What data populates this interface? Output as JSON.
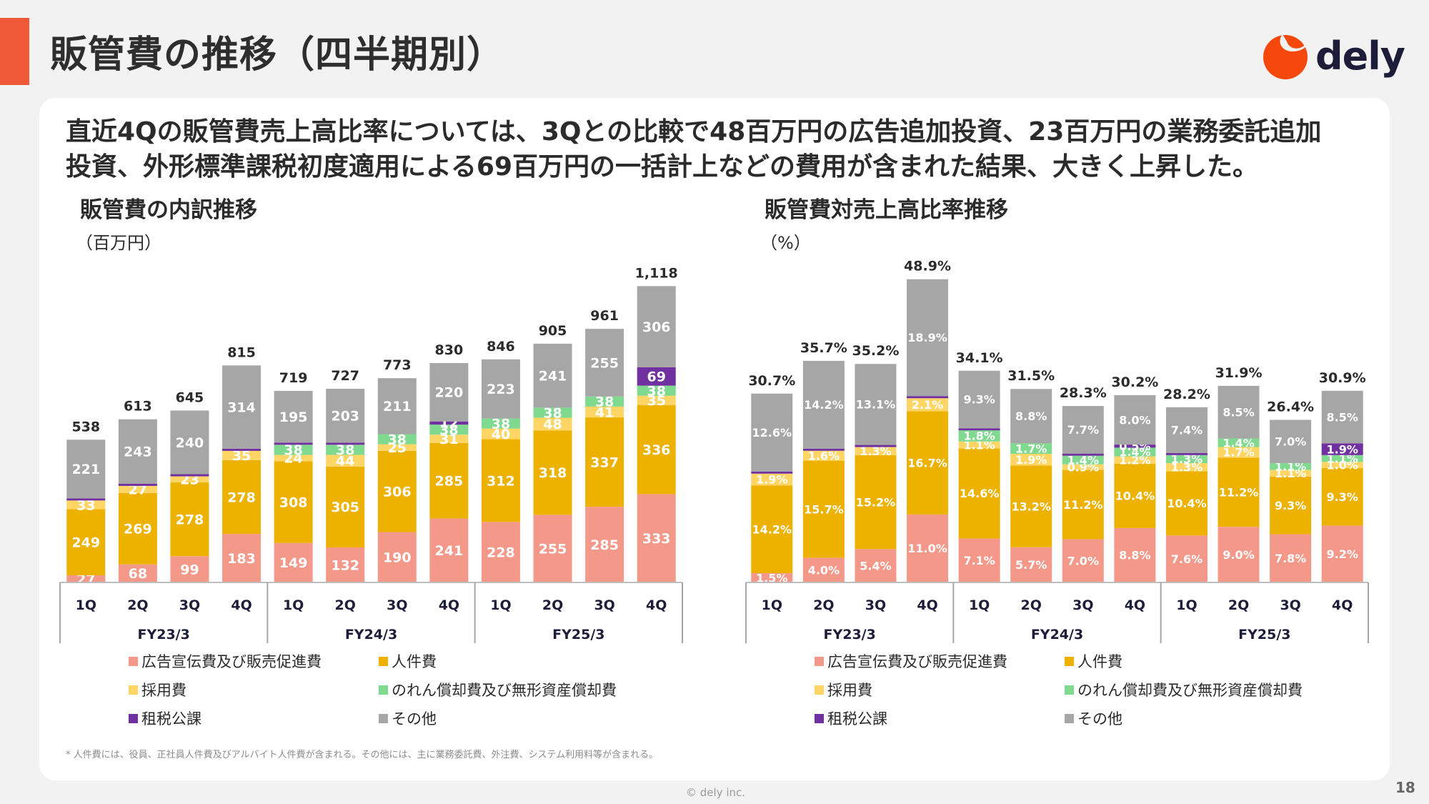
{
  "header": {
    "title": "販管費の推移（四半期別）",
    "logo_text": "dely",
    "accent_color": "#F05A38"
  },
  "headline": {
    "line1": "直近4Qの販管費売上高比率については、3Qとの比較で48百万円の広告追加投資、23百万円の業務委託追加",
    "line2": "投資、外形標準課税初度適用による69百万円の一括計上などの費用が含まれた結果、大きく上昇した。"
  },
  "series_colors": {
    "advertising": "#F4998A",
    "personnel": "#EDB100",
    "recruiting": "#FFD666",
    "amortization": "#7FD98F",
    "taxes": "#7030A0",
    "other": "#A6A6A6"
  },
  "chart_data": [
    {
      "type": "bar",
      "stacked": true,
      "title": "販管費の内訳推移",
      "unit": "（百万円）",
      "categories": [
        "1Q",
        "2Q",
        "3Q",
        "4Q",
        "1Q",
        "2Q",
        "3Q",
        "4Q",
        "1Q",
        "2Q",
        "3Q",
        "4Q"
      ],
      "groups": [
        {
          "label": "FY23/3",
          "span": 4
        },
        {
          "label": "FY24/3",
          "span": 4
        },
        {
          "label": "FY25/3",
          "span": 4
        }
      ],
      "totals": [
        "538",
        "613",
        "645",
        "815",
        "719",
        "727",
        "773",
        "830",
        "846",
        "905",
        "961",
        "1,118"
      ],
      "total_values": [
        538,
        613,
        645,
        815,
        719,
        727,
        773,
        830,
        846,
        905,
        961,
        1118
      ],
      "series": [
        {
          "key": "advertising",
          "name": "広告宣伝費及び販売促進費",
          "values": [
            27,
            68,
            99,
            183,
            149,
            132,
            190,
            241,
            228,
            255,
            285,
            333
          ],
          "labels": [
            "27",
            "68",
            "99",
            "183",
            "149",
            "132",
            "190",
            "241",
            "228",
            "255",
            "285",
            "333"
          ]
        },
        {
          "key": "personnel",
          "name": "人件費",
          "values": [
            249,
            269,
            278,
            278,
            308,
            305,
            306,
            285,
            312,
            318,
            337,
            336
          ],
          "labels": [
            "249",
            "269",
            "278",
            "278",
            "308",
            "305",
            "306",
            "285",
            "312",
            "318",
            "337",
            "336"
          ]
        },
        {
          "key": "recruiting",
          "name": "採用費",
          "values": [
            33,
            27,
            23,
            35,
            24,
            44,
            25,
            31,
            40,
            48,
            41,
            35
          ],
          "labels": [
            "33",
            "27",
            "23",
            "35",
            "24",
            "44",
            "25",
            "31",
            "40",
            "48",
            "41",
            "35"
          ]
        },
        {
          "key": "amortization",
          "name": "のれん償却費及び無形資産償却費",
          "values": [
            0,
            0,
            0,
            0,
            38,
            38,
            38,
            38,
            38,
            38,
            38,
            38
          ],
          "labels": [
            null,
            null,
            null,
            null,
            "38",
            "38",
            "38",
            "38",
            "38",
            "38",
            "38",
            "38"
          ]
        },
        {
          "key": "taxes",
          "name": "租税公課",
          "values": [
            3,
            3,
            3,
            3,
            3,
            3,
            0,
            12,
            0,
            0,
            0,
            69
          ],
          "labels": [
            null,
            null,
            null,
            null,
            null,
            null,
            null,
            "12",
            null,
            null,
            null,
            "69"
          ]
        },
        {
          "key": "other",
          "name": "その他",
          "values": [
            221,
            243,
            240,
            314,
            195,
            203,
            211,
            220,
            223,
            241,
            255,
            306
          ],
          "labels": [
            "221",
            "243",
            "240",
            "314",
            "195",
            "203",
            "211",
            "220",
            "223",
            "241",
            "255",
            "306"
          ]
        }
      ],
      "ylim": [
        0,
        1150
      ],
      "grid": false,
      "legend_position": "bottom"
    },
    {
      "type": "bar",
      "stacked": true,
      "title": "販管費対売上高比率推移",
      "unit": "（%）",
      "categories": [
        "1Q",
        "2Q",
        "3Q",
        "4Q",
        "1Q",
        "2Q",
        "3Q",
        "4Q",
        "1Q",
        "2Q",
        "3Q",
        "4Q"
      ],
      "groups": [
        {
          "label": "FY23/3",
          "span": 4
        },
        {
          "label": "FY24/3",
          "span": 4
        },
        {
          "label": "FY25/3",
          "span": 4
        }
      ],
      "totals": [
        "30.7%",
        "35.7%",
        "35.2%",
        "48.9%",
        "34.1%",
        "31.5%",
        "28.3%",
        "30.2%",
        "28.2%",
        "31.9%",
        "26.4%",
        "30.9%"
      ],
      "total_values": [
        30.7,
        35.7,
        35.2,
        48.9,
        34.1,
        31.5,
        28.3,
        30.2,
        28.2,
        31.9,
        26.4,
        30.9
      ],
      "series": [
        {
          "key": "advertising",
          "name": "広告宣伝費及び販売促進費",
          "values": [
            1.5,
            4.0,
            5.4,
            11.0,
            7.1,
            5.7,
            7.0,
            8.8,
            7.6,
            9.0,
            7.8,
            9.2
          ],
          "labels": [
            "1.5%",
            "4.0%",
            "5.4%",
            "11.0%",
            "7.1%",
            "5.7%",
            "7.0%",
            "8.8%",
            "7.6%",
            "9.0%",
            "7.8%",
            "9.2%"
          ]
        },
        {
          "key": "personnel",
          "name": "人件費",
          "values": [
            14.2,
            15.7,
            15.2,
            16.7,
            14.6,
            13.2,
            11.2,
            10.4,
            10.4,
            11.2,
            9.3,
            9.3
          ],
          "labels": [
            "14.2%",
            "15.7%",
            "15.2%",
            "16.7%",
            "14.6%",
            "13.2%",
            "11.2%",
            "10.4%",
            "10.4%",
            "11.2%",
            "9.3%",
            "9.3%"
          ]
        },
        {
          "key": "recruiting",
          "name": "採用費",
          "values": [
            1.9,
            1.6,
            1.3,
            2.1,
            1.1,
            1.9,
            0.9,
            1.2,
            1.3,
            1.7,
            1.1,
            1.0
          ],
          "labels": [
            "1.9%",
            "1.6%",
            "1.3%",
            "2.1%",
            "1.1%",
            "1.9%",
            "0.9%",
            "1.2%",
            "1.3%",
            "1.7%",
            "1.1%",
            "1.0%"
          ]
        },
        {
          "key": "amortization",
          "name": "のれん償却費及び無形資産償却費",
          "values": [
            0,
            0,
            0,
            0,
            1.8,
            1.7,
            1.4,
            1.4,
            1.3,
            1.4,
            1.1,
            1.1
          ],
          "labels": [
            null,
            null,
            null,
            null,
            "1.8%",
            "1.7%",
            "1.4%",
            "1.4%",
            "1.3%",
            "1.4%",
            "1.1%",
            "1.1%"
          ]
        },
        {
          "key": "taxes",
          "name": "租税公課",
          "values": [
            0.2,
            0.1,
            0.1,
            0.1,
            0.1,
            0,
            0.1,
            0.5,
            0.1,
            0,
            0,
            1.9
          ],
          "labels": [
            null,
            null,
            null,
            null,
            null,
            null,
            null,
            "0.5%",
            null,
            null,
            null,
            "1.9%"
          ]
        },
        {
          "key": "other",
          "name": "その他",
          "values": [
            12.6,
            14.2,
            13.1,
            18.9,
            9.3,
            8.8,
            7.7,
            8.0,
            7.4,
            8.5,
            7.0,
            8.5
          ],
          "labels": [
            "12.6%",
            "14.2%",
            "13.1%",
            "18.9%",
            "9.3%",
            "8.8%",
            "7.7%",
            "8.0%",
            "7.4%",
            "8.5%",
            "7.0%",
            "8.5%"
          ]
        }
      ],
      "ylim": [
        0,
        50
      ],
      "grid": false,
      "legend_position": "bottom"
    }
  ],
  "legend": [
    {
      "key": "advertising",
      "label": "広告宣伝費及び販売促進費"
    },
    {
      "key": "personnel",
      "label": "人件費"
    },
    {
      "key": "recruiting",
      "label": "採用費"
    },
    {
      "key": "amortization",
      "label": "のれん償却費及び無形資産償却費"
    },
    {
      "key": "taxes",
      "label": "租税公課"
    },
    {
      "key": "other",
      "label": "その他"
    }
  ],
  "footnote": "* 人件費には、役員、正社員人件費及びアルバイト人件費が含まれる。その他には、主に業務委託費、外注費、システム利用料等が含まれる。",
  "footer": {
    "copyright": "© dely inc.",
    "page_number": "18"
  }
}
